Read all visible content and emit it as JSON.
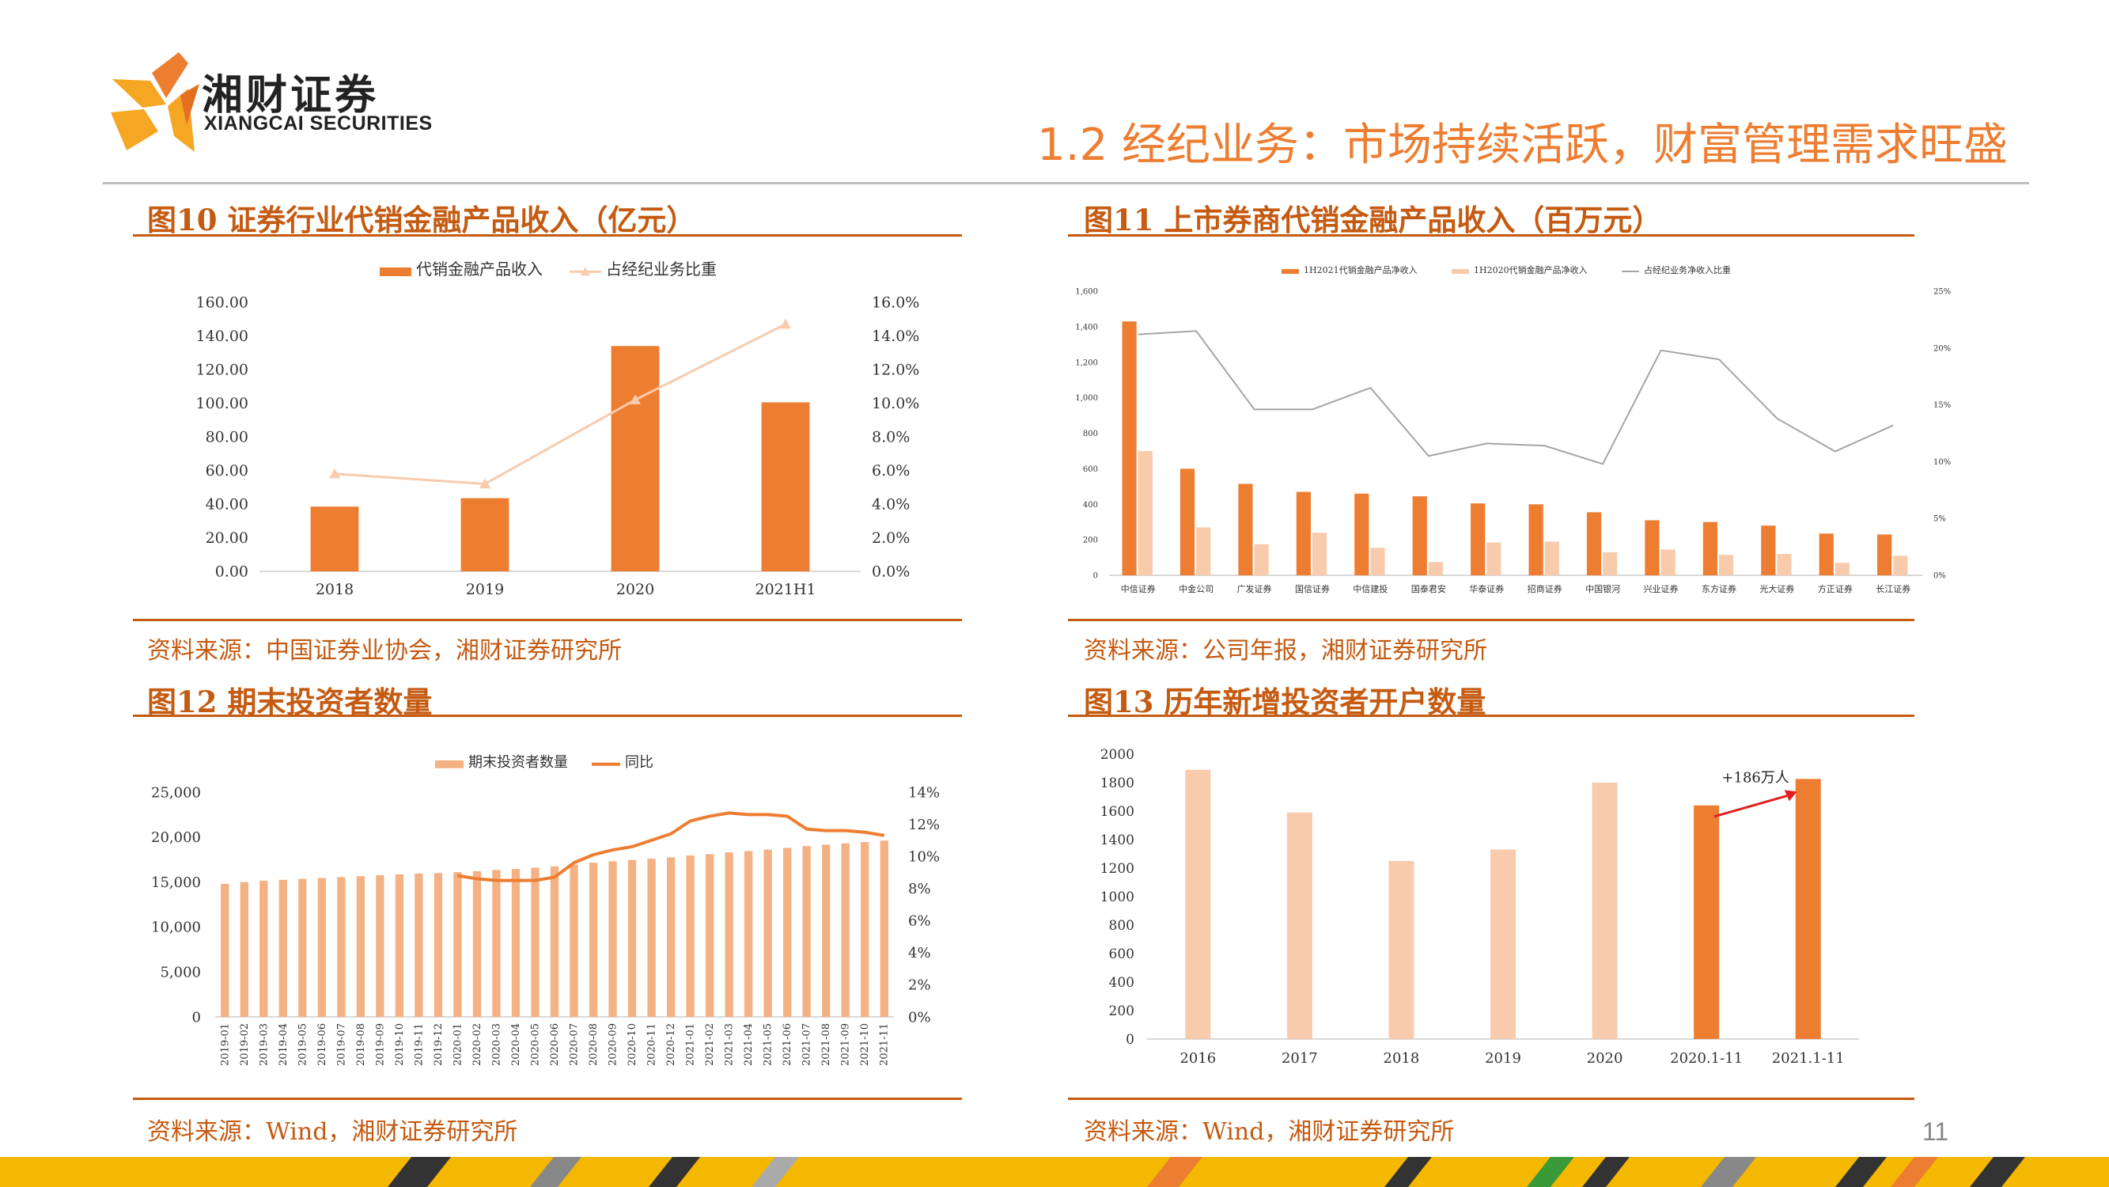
{
  "header": {
    "logo_cn": "湘财证券",
    "logo_en": "XIANGCAI SECURITIES",
    "title": "1.2 经纪业务：市场持续活跃，财富管理需求旺盛"
  },
  "page_number": "11",
  "colors": {
    "accent": "#ED7D31",
    "light": "#F8CBAD",
    "dark_accent": "#C55A11",
    "line_gray": "#A5A5A5"
  },
  "panels": [
    {
      "title": "图10 证券行业代销金融产品收入（亿元）",
      "source": "资料来源：中国证券业协会，湘财证券研究所"
    },
    {
      "title": "图11 上市券商代销金融产品收入（百万元）",
      "source": "资料来源：公司年报，湘财证券研究所"
    },
    {
      "title": "图12 期末投资者数量",
      "source": "资料来源：Wind，湘财证券研究所"
    },
    {
      "title": "图13 历年新增投资者开户数量",
      "source": "资料来源：Wind，湘财证券研究所"
    }
  ],
  "chart_data": [
    {
      "type": "bar",
      "categories": [
        "2018",
        "2019",
        "2020",
        "2021H1"
      ],
      "series": [
        {
          "name": "代销金融产品收入",
          "type": "bar",
          "axis": "left",
          "values": [
            38.5,
            43.5,
            134,
            100.5
          ]
        },
        {
          "name": "占经纪业务比重",
          "type": "line",
          "axis": "right",
          "values": [
            5.8,
            5.2,
            10.2,
            14.7
          ]
        }
      ],
      "yticks_left": [
        "0.00",
        "20.00",
        "40.00",
        "60.00",
        "80.00",
        "100.00",
        "120.00",
        "140.00",
        "160.00"
      ],
      "yticks_right": [
        "0.0%",
        "2.0%",
        "4.0%",
        "6.0%",
        "8.0%",
        "10.0%",
        "12.0%",
        "14.0%",
        "16.0%"
      ],
      "ylim_left": [
        0,
        160
      ],
      "ylim_right": [
        0,
        16
      ],
      "legend": "top"
    },
    {
      "type": "bar",
      "categories": [
        "中信证券",
        "中金公司",
        "广发证券",
        "国信证券",
        "中信建投",
        "国泰君安",
        "华泰证券",
        "招商证券",
        "中国银河",
        "兴业证券",
        "东方证券",
        "光大证券",
        "方正证券",
        "长江证券"
      ],
      "series": [
        {
          "name": "1H2021代销金融产品净收入",
          "type": "bar",
          "axis": "left",
          "values": [
            1430,
            600,
            515,
            470,
            460,
            445,
            405,
            400,
            355,
            310,
            300,
            280,
            235,
            230
          ]
        },
        {
          "name": "1H2020代销金融产品净收入",
          "type": "bar",
          "axis": "left",
          "values": [
            700,
            270,
            175,
            240,
            155,
            75,
            185,
            190,
            130,
            145,
            115,
            120,
            70,
            110
          ]
        },
        {
          "name": "占经纪业务净收入比重",
          "type": "line",
          "axis": "right",
          "values": [
            21.2,
            21.5,
            14.6,
            14.6,
            16.5,
            10.5,
            11.6,
            11.4,
            9.8,
            19.8,
            19.0,
            13.8,
            10.9,
            13.2
          ]
        }
      ],
      "yticks_left": [
        "0",
        "200",
        "400",
        "600",
        "800",
        "1,000",
        "1,200",
        "1,400",
        "1,600"
      ],
      "yticks_right": [
        "0%",
        "5%",
        "10%",
        "15%",
        "20%",
        "25%"
      ],
      "ylim_left": [
        0,
        1600
      ],
      "ylim_right": [
        0,
        25
      ],
      "legend": "top"
    },
    {
      "type": "bar",
      "categories": [
        "2019-01",
        "2019-02",
        "2019-03",
        "2019-04",
        "2019-05",
        "2019-06",
        "2019-07",
        "2019-08",
        "2019-09",
        "2019-10",
        "2019-11",
        "2019-12",
        "2020-01",
        "2020-02",
        "2020-03",
        "2020-04",
        "2020-05",
        "2020-06",
        "2020-07",
        "2020-08",
        "2020-09",
        "2020-10",
        "2020-11",
        "2020-12",
        "2021-01",
        "2021-02",
        "2021-03",
        "2021-04",
        "2021-05",
        "2021-06",
        "2021-07",
        "2021-08",
        "2021-09",
        "2021-10",
        "2021-11"
      ],
      "series": [
        {
          "name": "期末投资者数量",
          "type": "bar",
          "axis": "left",
          "values": [
            14800,
            15000,
            15150,
            15250,
            15350,
            15450,
            15550,
            15650,
            15750,
            15850,
            15950,
            16000,
            16100,
            16200,
            16350,
            16450,
            16600,
            16750,
            16950,
            17150,
            17300,
            17450,
            17600,
            17750,
            17950,
            18100,
            18300,
            18450,
            18600,
            18800,
            19000,
            19150,
            19300,
            19450,
            19600
          ]
        },
        {
          "name": "同比",
          "type": "line",
          "axis": "right",
          "values": [
            null,
            null,
            null,
            null,
            null,
            null,
            null,
            null,
            null,
            null,
            null,
            null,
            8.8,
            8.6,
            8.5,
            8.5,
            8.5,
            8.7,
            9.6,
            10.1,
            10.4,
            10.6,
            11.0,
            11.4,
            12.2,
            12.5,
            12.7,
            12.6,
            12.6,
            12.5,
            11.7,
            11.6,
            11.6,
            11.5,
            11.3
          ]
        }
      ],
      "yticks_left": [
        "0",
        "5,000",
        "10,000",
        "15,000",
        "20,000",
        "25,000"
      ],
      "yticks_right": [
        "0%",
        "2%",
        "4%",
        "6%",
        "8%",
        "10%",
        "12%",
        "14%"
      ],
      "ylim_left": [
        0,
        25000
      ],
      "ylim_right": [
        0,
        14
      ],
      "legend": "top"
    },
    {
      "type": "bar",
      "categories": [
        "2016",
        "2017",
        "2018",
        "2019",
        "2020",
        "2020.1-11",
        "2021.1-11"
      ],
      "values": [
        1890,
        1590,
        1250,
        1330,
        1800,
        1640,
        1826
      ],
      "highlight": [
        false,
        false,
        false,
        false,
        false,
        true,
        true
      ],
      "yticks": [
        "0",
        "200",
        "400",
        "600",
        "800",
        "1000",
        "1200",
        "1400",
        "1600",
        "1800",
        "2000"
      ],
      "ylim": [
        0,
        2000
      ],
      "annotation": "+186万人"
    }
  ]
}
